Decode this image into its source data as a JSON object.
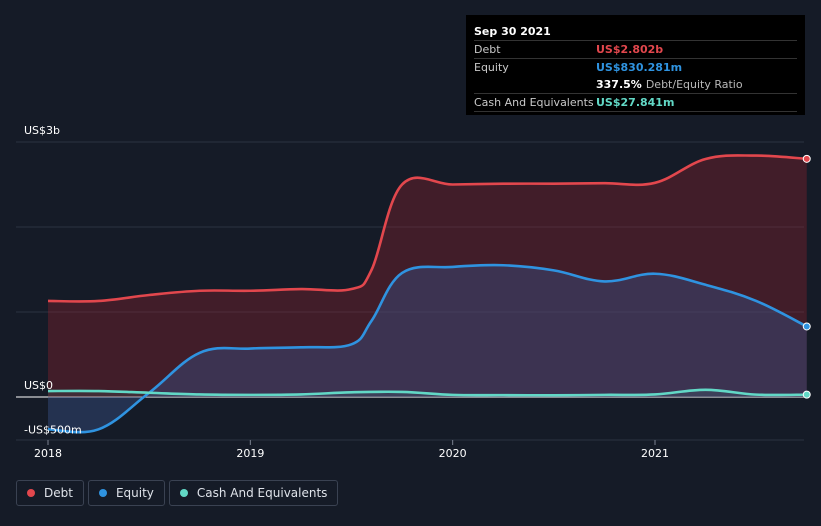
{
  "tooltip": {
    "date": "Sep 30 2021",
    "debt_label": "Debt",
    "debt_value": "US$2.802b",
    "equity_label": "Equity",
    "equity_value": "US$830.281m",
    "ratio_value": "337.5%",
    "ratio_label": "Debt/Equity Ratio",
    "cash_label": "Cash And Equivalents",
    "cash_value": "US$27.841m"
  },
  "legend": {
    "debt": "Debt",
    "equity": "Equity",
    "cash": "Cash And Equivalents"
  },
  "colors": {
    "debt": "#e2474d",
    "equity": "#2f93e0",
    "cash": "#62d8c6",
    "background": "#151b27"
  },
  "chart_data": {
    "type": "area",
    "y_tick_labels": [
      "US$3b",
      "US$0",
      "-US$500m"
    ],
    "x_tick_labels": [
      "2018",
      "2019",
      "2020",
      "2021"
    ],
    "ylim": [
      -500,
      3000
    ],
    "y_unit": "US$ millions",
    "series": [
      {
        "name": "Debt",
        "color": "#e2474d",
        "points": [
          [
            2018.0,
            1130
          ],
          [
            2018.25,
            1130
          ],
          [
            2018.5,
            1200
          ],
          [
            2018.75,
            1250
          ],
          [
            2019.0,
            1250
          ],
          [
            2019.25,
            1270
          ],
          [
            2019.5,
            1270
          ],
          [
            2019.6,
            1500
          ],
          [
            2019.75,
            2500
          ],
          [
            2020.0,
            2500
          ],
          [
            2020.25,
            2510
          ],
          [
            2020.5,
            2510
          ],
          [
            2020.75,
            2515
          ],
          [
            2021.0,
            2520
          ],
          [
            2021.25,
            2800
          ],
          [
            2021.5,
            2840
          ],
          [
            2021.75,
            2802
          ]
        ]
      },
      {
        "name": "Equity",
        "color": "#2f93e0",
        "points": [
          [
            2018.0,
            -380
          ],
          [
            2018.25,
            -380
          ],
          [
            2018.5,
            50
          ],
          [
            2018.75,
            520
          ],
          [
            2019.0,
            570
          ],
          [
            2019.25,
            585
          ],
          [
            2019.5,
            620
          ],
          [
            2019.6,
            900
          ],
          [
            2019.75,
            1460
          ],
          [
            2020.0,
            1530
          ],
          [
            2020.25,
            1550
          ],
          [
            2020.5,
            1490
          ],
          [
            2020.75,
            1360
          ],
          [
            2021.0,
            1450
          ],
          [
            2021.25,
            1320
          ],
          [
            2021.5,
            1130
          ],
          [
            2021.75,
            830
          ]
        ]
      },
      {
        "name": "Cash And Equivalents",
        "color": "#62d8c6",
        "points": [
          [
            2018.0,
            70
          ],
          [
            2018.25,
            70
          ],
          [
            2018.5,
            50
          ],
          [
            2018.75,
            30
          ],
          [
            2019.0,
            25
          ],
          [
            2019.25,
            30
          ],
          [
            2019.5,
            55
          ],
          [
            2019.75,
            60
          ],
          [
            2020.0,
            25
          ],
          [
            2020.25,
            22
          ],
          [
            2020.5,
            20
          ],
          [
            2020.75,
            25
          ],
          [
            2021.0,
            30
          ],
          [
            2021.25,
            85
          ],
          [
            2021.5,
            28
          ],
          [
            2021.75,
            28
          ]
        ]
      }
    ],
    "grid": true,
    "legend_position": "bottom-left"
  }
}
